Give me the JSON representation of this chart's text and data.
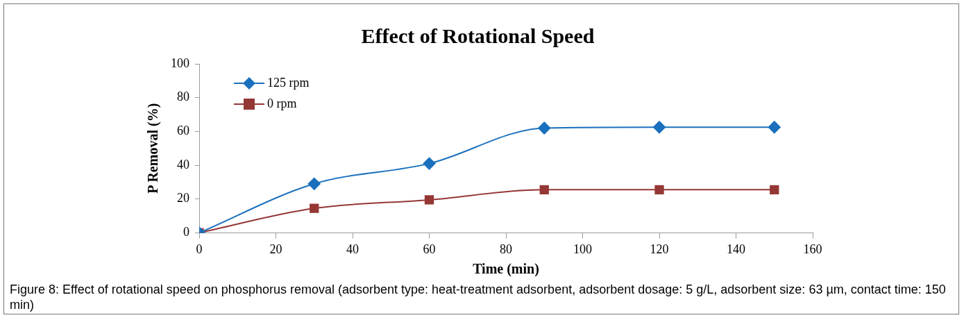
{
  "chart_data": {
    "type": "line",
    "title": "Effect of Rotational Speed",
    "xlabel": "Time (min)",
    "ylabel": "P Removal (%)",
    "x": [
      0,
      30,
      60,
      90,
      120,
      150
    ],
    "series": [
      {
        "name": "125 rpm",
        "color": "#1a70bd",
        "marker": "diamond",
        "values": [
          0,
          29,
          41,
          62,
          62.5,
          62.5
        ]
      },
      {
        "name": "0 rpm",
        "color": "#953735",
        "marker": "square",
        "values": [
          0,
          14.5,
          19.5,
          25.5,
          25.5,
          25.5
        ]
      }
    ],
    "xlim": [
      0,
      160
    ],
    "xticks": [
      0,
      20,
      40,
      60,
      80,
      100,
      120,
      140,
      160
    ],
    "ylim": [
      0,
      100
    ],
    "yticks": [
      0,
      20,
      40,
      60,
      80,
      100
    ],
    "grid": false,
    "legend": "top left",
    "annotations": [
      "Figure 8: Effect of rotational speed on phosphorus removal (adsorbent type: heat-treatment adsorbent, adsorbent dosage: 5 g/L, adsorbent size: 63 µm, contact time: 150 min)"
    ]
  }
}
